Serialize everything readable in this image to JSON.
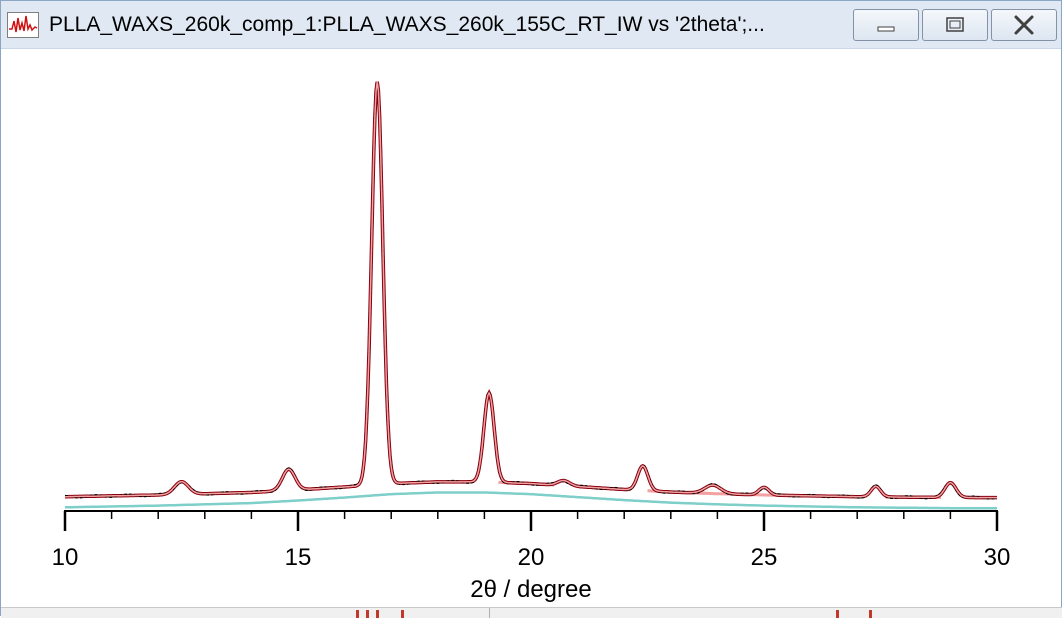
{
  "window": {
    "title": "PLLA_WAXS_260k_comp_1:PLLA_WAXS_260k_155C_RT_IW vs '2theta';...",
    "icon": "graph-window-icon",
    "buttons": {
      "minimize": "minimize-icon",
      "maximize": "maximize-icon",
      "close": "close-icon"
    }
  },
  "colors": {
    "data": "#000000",
    "fit": "#8b0010",
    "components": "#f2a0a0",
    "baseline": "#7ecfc9"
  },
  "chart_data": {
    "type": "line",
    "title": "",
    "xlabel": "2θ / degree",
    "ylabel": "",
    "xlim": [
      10,
      30
    ],
    "ylim": [
      0,
      1.0
    ],
    "xticks": [
      10,
      15,
      20,
      25,
      30
    ],
    "grid": false,
    "legend": "none",
    "baseline": {
      "x": [
        10,
        12,
        14,
        15,
        16,
        17,
        18,
        19,
        20,
        21,
        22,
        23,
        24,
        25,
        26,
        27,
        28,
        29,
        30
      ],
      "y": [
        0.004,
        0.008,
        0.014,
        0.02,
        0.027,
        0.035,
        0.039,
        0.039,
        0.035,
        0.028,
        0.021,
        0.015,
        0.011,
        0.008,
        0.006,
        0.004,
        0.003,
        0.002,
        0.002
      ]
    },
    "baseline_offset": 0.025,
    "peaks": [
      {
        "center": 12.5,
        "height": 0.03,
        "width": 0.35
      },
      {
        "center": 14.8,
        "height": 0.05,
        "width": 0.32
      },
      {
        "center": 16.7,
        "height": 0.95,
        "width": 0.28
      },
      {
        "center": 19.1,
        "height": 0.21,
        "width": 0.26
      },
      {
        "center": 20.7,
        "height": 0.012,
        "width": 0.3
      },
      {
        "center": 22.4,
        "height": 0.058,
        "width": 0.26
      },
      {
        "center": 23.9,
        "height": 0.02,
        "width": 0.4
      },
      {
        "center": 25.0,
        "height": 0.018,
        "width": 0.25
      },
      {
        "center": 27.4,
        "height": 0.025,
        "width": 0.24
      },
      {
        "center": 29.0,
        "height": 0.035,
        "width": 0.28
      }
    ]
  }
}
